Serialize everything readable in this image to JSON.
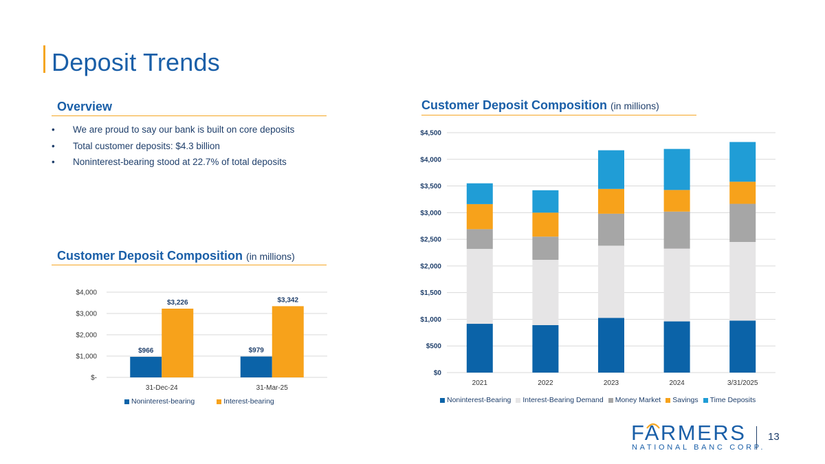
{
  "page": {
    "title": "Deposit Trends",
    "page_number": "13"
  },
  "overview": {
    "heading": "Overview",
    "bullets": [
      "We are proud to say our bank is built on core deposits",
      "Total customer deposits: $4.3 billion",
      "Noninterest-bearing stood at 22.7% of total deposits"
    ]
  },
  "left_chart_heading": {
    "title": "Customer Deposit Composition",
    "unit": "(in millions)"
  },
  "right_chart_heading": {
    "title": "Customer Deposit Composition",
    "unit": "(in millions)"
  },
  "logo": {
    "word_a": "F",
    "word_b": "RMERS",
    "tagline": "NATIONAL BANC CORP."
  },
  "colors": {
    "navy": "#0b63a8",
    "orange": "#f7a21b",
    "light_gray": "#e6e5e6",
    "gray": "#a6a6a6",
    "sky_blue": "#209dd6",
    "brand_blue": "#1a5fa8"
  },
  "chart_data": [
    {
      "type": "bar",
      "categories": [
        "31-Dec-24",
        "31-Mar-25"
      ],
      "series": [
        {
          "name": "Noninterest-bearing",
          "values": [
            966,
            979
          ],
          "labels": [
            "$966",
            "$979"
          ],
          "color": "#0b63a8"
        },
        {
          "name": "Interest-bearing",
          "values": [
            3226,
            3342
          ],
          "labels": [
            "$3,226",
            "$3,342"
          ],
          "color": "#f7a21b"
        }
      ],
      "ylim": [
        0,
        4000
      ],
      "yticks": [
        0,
        1000,
        2000,
        3000,
        4000
      ],
      "ytick_labels": [
        "$-",
        "$1,000",
        "$2,000",
        "$3,000",
        "$4,000"
      ],
      "grid": true,
      "legend": "bottom"
    },
    {
      "type": "bar",
      "stacked": true,
      "categories": [
        "2021",
        "2022",
        "2023",
        "2024",
        "3/31/2025"
      ],
      "series": [
        {
          "name": "Noninterest-Bearing",
          "values": [
            915,
            890,
            1025,
            960,
            975
          ],
          "color": "#0b63a8"
        },
        {
          "name": "Interest-Bearing Demand",
          "values": [
            1405,
            1225,
            1355,
            1365,
            1475
          ],
          "color": "#e6e5e6"
        },
        {
          "name": "Money Market",
          "values": [
            370,
            435,
            600,
            695,
            715
          ],
          "color": "#a6a6a6"
        },
        {
          "name": "Savings",
          "values": [
            470,
            450,
            465,
            405,
            415
          ],
          "color": "#f7a21b"
        },
        {
          "name": "Time Deposits",
          "values": [
            390,
            420,
            725,
            770,
            745
          ],
          "color": "#209dd6"
        }
      ],
      "ylim": [
        0,
        4500
      ],
      "yticks": [
        0,
        500,
        1000,
        1500,
        2000,
        2500,
        3000,
        3500,
        4000,
        4500
      ],
      "ytick_labels": [
        "$0",
        "$500",
        "$1,000",
        "$1,500",
        "$2,000",
        "$2,500",
        "$3,000",
        "$3,500",
        "$4,000",
        "$4,500"
      ],
      "grid": true,
      "legend": "bottom"
    }
  ]
}
